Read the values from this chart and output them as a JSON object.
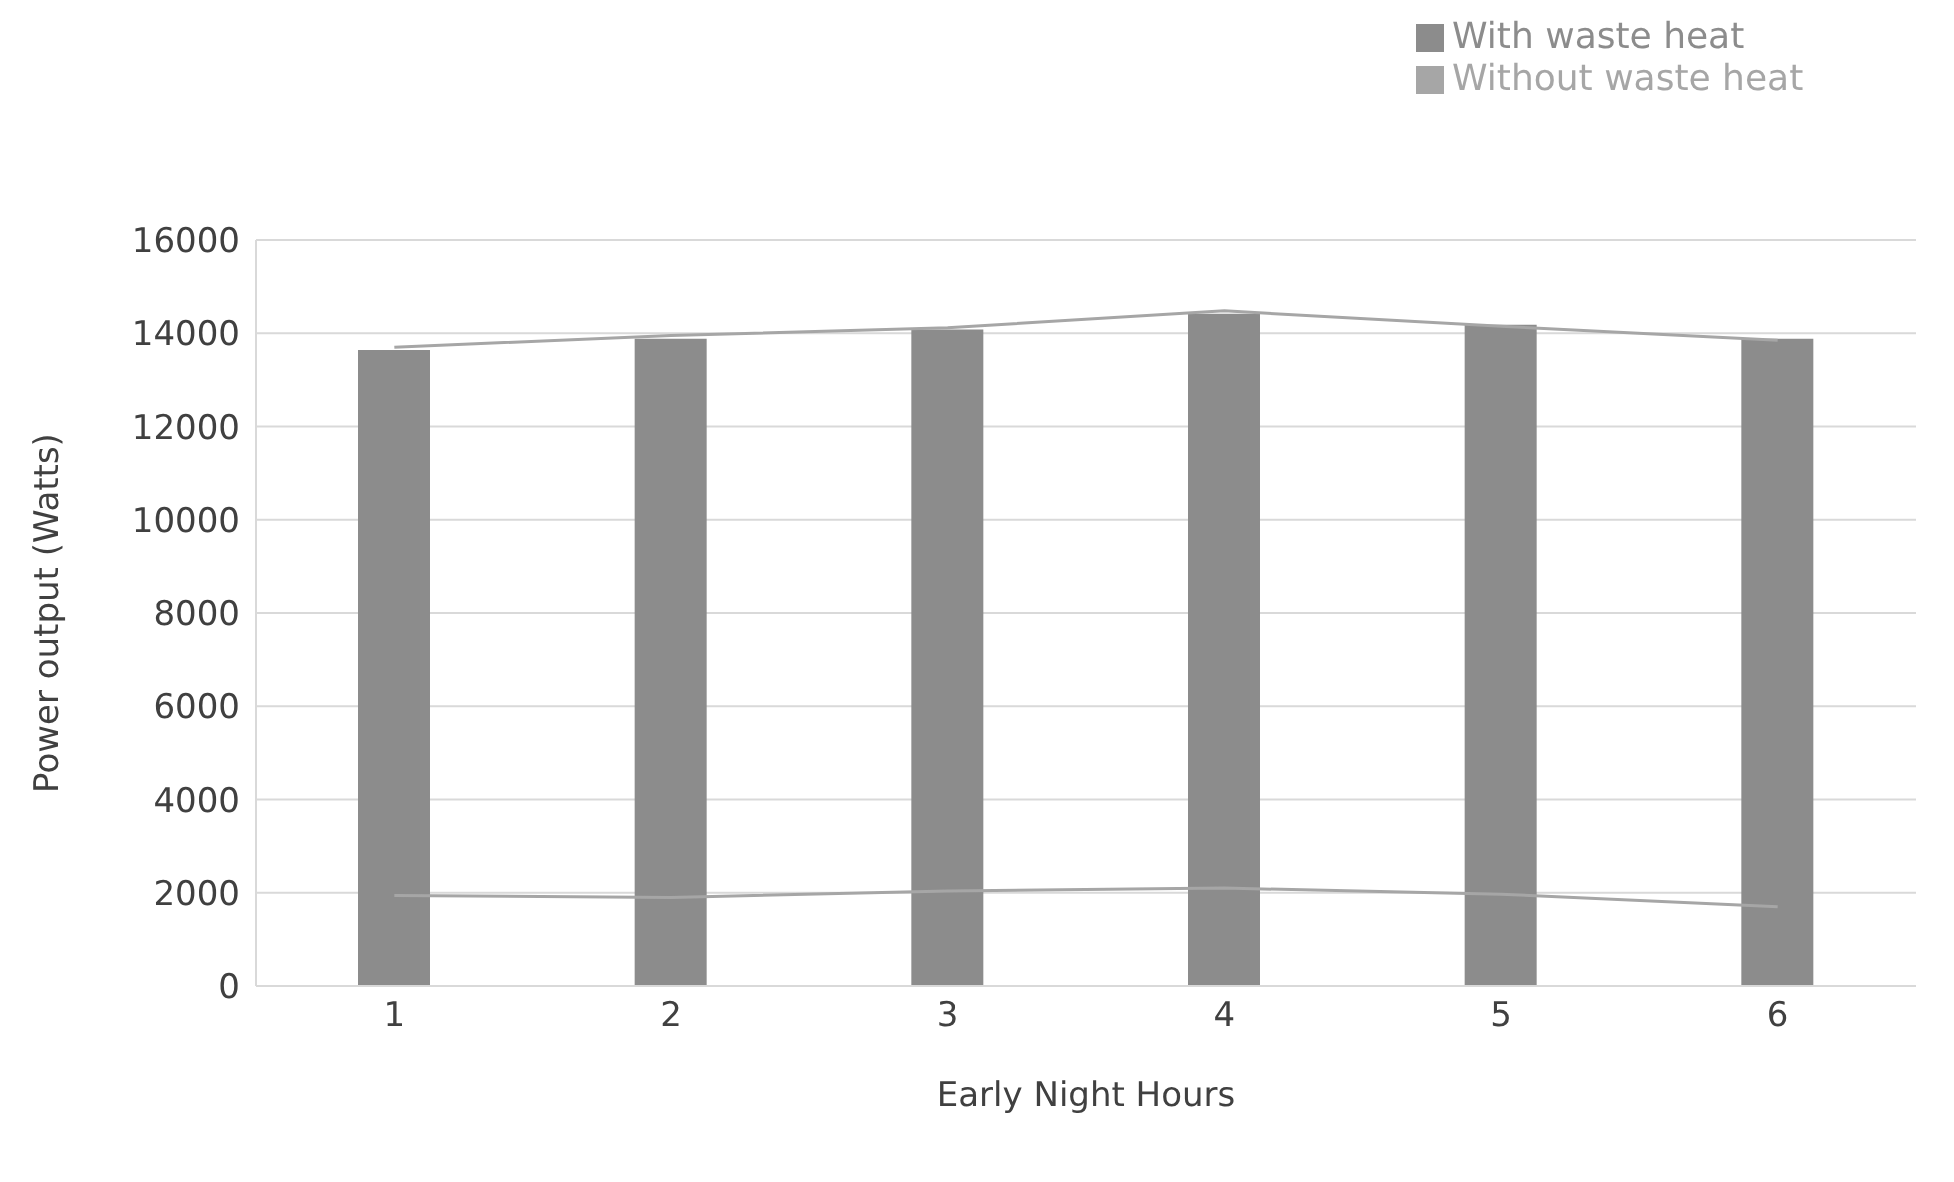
{
  "chart_data": {
    "type": "bar",
    "xlabel": "Early Night Hours",
    "ylabel": "Power output (Watts)",
    "categories": [
      "1",
      "2",
      "3",
      "4",
      "5",
      "6"
    ],
    "series": [
      {
        "name": "With waste heat",
        "color": "#8c8c8c",
        "values": [
          13640,
          13880,
          14080,
          14420,
          14180,
          13880
        ]
      },
      {
        "name": "Without waste heat",
        "type": "line",
        "color": "#a6a6a6",
        "values": [
          1940,
          1900,
          2040,
          2100,
          1970,
          1700
        ]
      },
      {
        "type": "line",
        "color": "#a6a6a6",
        "values": [
          13700,
          13950,
          14120,
          14480,
          14150,
          13850
        ]
      }
    ],
    "ylim": [
      0,
      16000
    ],
    "yticks": [
      0,
      2000,
      4000,
      6000,
      8000,
      10000,
      12000,
      14000,
      16000
    ],
    "grid": "y",
    "legend": "top right",
    "marker": "none"
  }
}
